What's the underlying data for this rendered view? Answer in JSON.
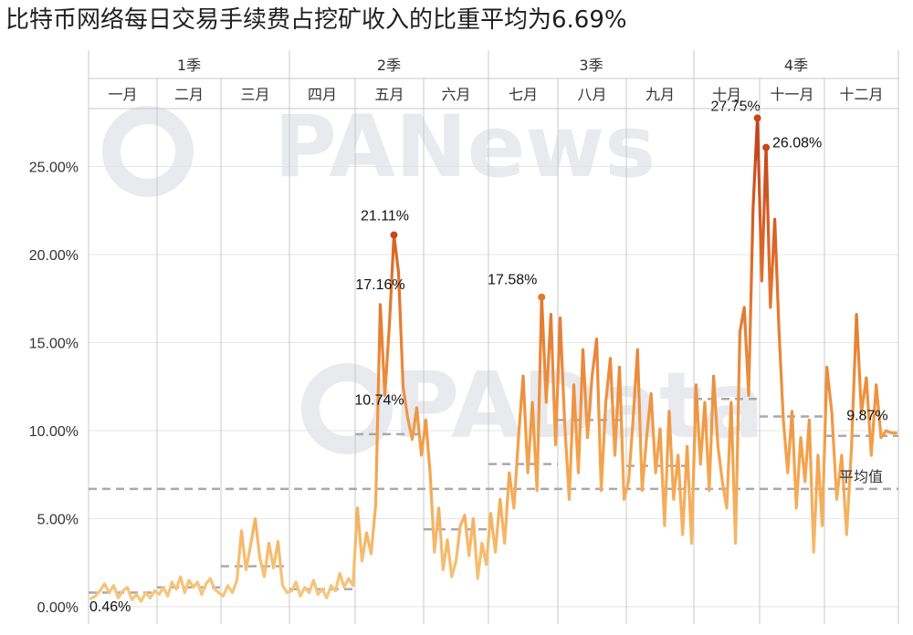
{
  "title": "比特币网络每日交易手续费占挖矿收入的比重平均为6.69%",
  "watermark_top": "PANews",
  "watermark_mid": "PAData",
  "chart_data": {
    "type": "line",
    "title": "比特币网络每日交易手续费占挖矿收入的比重平均为6.69%",
    "ylim": [
      0,
      30
    ],
    "y_ticks": [
      "0.00%",
      "5.00%",
      "10.00%",
      "15.00%",
      "20.00%",
      "25.00%"
    ],
    "y_tick_values": [
      0,
      5,
      10,
      15,
      20,
      25
    ],
    "grid": true,
    "quarters": [
      "1季",
      "2季",
      "3季",
      "4季"
    ],
    "months": [
      "一月",
      "二月",
      "三月",
      "四月",
      "五月",
      "六月",
      "七月",
      "八月",
      "九月",
      "十月",
      "十一月",
      "十二月"
    ],
    "average": {
      "label": "平均值",
      "value": 6.69
    },
    "monthly_averages": [
      0.8,
      1.1,
      2.3,
      1.0,
      9.8,
      4.4,
      8.1,
      10.6,
      8.0,
      11.8,
      10.8,
      9.7
    ],
    "daily_values": [
      [
        0.46,
        0.6,
        0.9,
        1.3,
        0.8,
        1.2,
        0.5,
        0.9,
        1.1,
        0.4,
        0.7,
        0.3,
        0.8,
        0.5,
        0.9
      ],
      [
        0.7,
        1.1,
        0.6,
        1.4,
        1.0,
        1.7,
        0.8,
        1.5,
        1.1,
        1.4,
        0.7,
        1.3,
        1.6,
        1.0,
        0.8
      ],
      [
        0.6,
        1.2,
        0.8,
        1.5,
        4.3,
        2.1,
        3.5,
        5.0,
        2.8,
        1.7,
        3.6,
        2.2,
        3.7,
        1.2,
        0.8
      ],
      [
        0.9,
        1.4,
        0.6,
        1.1,
        0.8,
        1.5,
        0.7,
        1.0,
        0.5,
        1.2,
        0.9,
        1.9,
        1.1,
        1.6,
        1.2
      ],
      [
        5.6,
        2.6,
        4.2,
        3.0,
        5.8,
        17.16,
        12.0,
        16.0,
        21.11,
        19.0,
        12.5,
        10.74,
        9.5,
        11.3,
        8.6
      ],
      [
        10.6,
        7.6,
        3.1,
        5.6,
        2.1,
        3.8,
        1.7,
        2.6,
        4.6,
        5.2,
        2.9,
        5.0,
        1.6,
        3.6,
        2.4
      ],
      [
        5.3,
        3.1,
        6.1,
        3.6,
        7.6,
        5.6,
        9.6,
        13.1,
        7.6,
        11.6,
        6.6,
        17.58,
        11.6,
        16.6,
        9.2
      ],
      [
        16.4,
        10.4,
        6.1,
        12.6,
        7.6,
        14.6,
        9.6,
        13.1,
        15.2,
        6.6,
        11.6,
        14.1,
        8.6,
        13.6,
        6.1
      ],
      [
        7.1,
        10.6,
        14.6,
        6.6,
        9.6,
        12.1,
        7.6,
        10.1,
        4.6,
        11.1,
        6.1,
        8.6,
        4.1,
        9.1,
        3.6
      ],
      [
        12.6,
        8.1,
        11.6,
        6.6,
        13.1,
        9.1,
        7.1,
        5.6,
        11.6,
        3.6,
        15.6,
        17.0,
        12.0,
        22.6,
        27.75
      ],
      [
        18.5,
        26.08,
        17.0,
        22.0,
        15.6,
        10.6,
        7.6,
        11.1,
        5.6,
        9.6,
        7.1,
        10.6,
        3.1,
        8.6,
        4.6
      ],
      [
        13.6,
        11.0,
        6.1,
        8.6,
        4.1,
        9.1,
        16.6,
        11.0,
        13.0,
        8.6,
        12.6,
        9.6,
        10.0,
        9.87,
        9.87
      ]
    ],
    "annotations": [
      {
        "text": "0.46%",
        "month": 0,
        "day": 0,
        "value": 0.46
      },
      {
        "text": "17.16%",
        "month": 4,
        "day": 5,
        "value": 17.16
      },
      {
        "text": "21.11%",
        "month": 4,
        "day": 8,
        "value": 21.11
      },
      {
        "text": "10.74%",
        "month": 4,
        "day": 11,
        "value": 10.74
      },
      {
        "text": "17.58%",
        "month": 6,
        "day": 11,
        "value": 17.58
      },
      {
        "text": "27.75%",
        "month": 9,
        "day": 14,
        "value": 27.75
      },
      {
        "text": "26.08%",
        "month": 10,
        "day": 1,
        "value": 26.08
      },
      {
        "text": "9.87%",
        "month": 11,
        "day": 13,
        "value": 9.87
      }
    ],
    "colors": {
      "low": "#f6c37a",
      "high": "#c9461b",
      "average_line": "#a9a9a9",
      "grid": "#e6e6e6",
      "separator": "#c8c8c8"
    }
  }
}
